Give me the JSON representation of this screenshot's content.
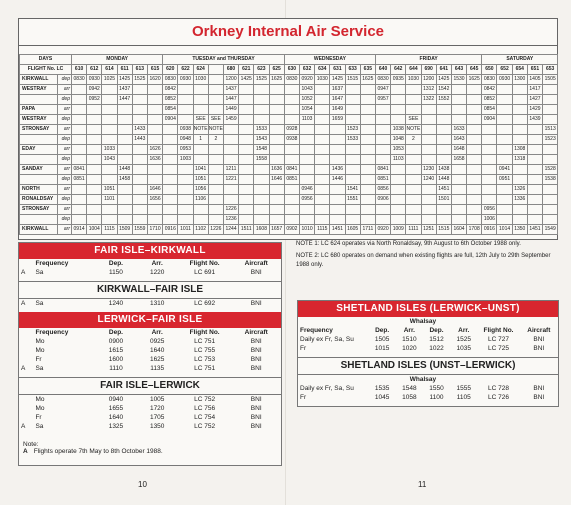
{
  "title": "Orkney Internal Air Service",
  "timetable": {
    "days_label": "DAYS",
    "flight_label": "FLIGHT No. LC",
    "days": [
      {
        "name": "MONDAY",
        "flights": [
          "610",
          "612",
          "614",
          "611",
          "613",
          "615"
        ]
      },
      {
        "name": "TUESDAY and THURSDAY",
        "flights": [
          "620",
          "622",
          "624",
          null,
          "680",
          "621",
          "623",
          "625"
        ]
      },
      {
        "name": "WEDNESDAY",
        "flights": [
          "630",
          "632",
          "634",
          "631",
          "633",
          "635"
        ]
      },
      {
        "name": "FRIDAY",
        "flights": [
          "640",
          "642",
          "644",
          "690",
          "641",
          "643",
          "645"
        ]
      },
      {
        "name": "SATURDAY",
        "flights": [
          "650",
          "652",
          "654",
          "651",
          "653"
        ]
      }
    ],
    "rows": [
      {
        "place": "KIRKWALL",
        "kind": "dep",
        "times": [
          "0830",
          "0930",
          "1025",
          "1425",
          "1525",
          "1620",
          "0830",
          "0930",
          "1030",
          null,
          "1200",
          "1425",
          "1525",
          "1625",
          "0830",
          "0920",
          "1030",
          "1425",
          "1515",
          "1625",
          "0830",
          "0935",
          "1030",
          "1200",
          "1425",
          "1530",
          "1625",
          "0830",
          "0930",
          "1300",
          "1405",
          "1505"
        ]
      },
      {
        "place": "WESTRAY",
        "kind": "arr",
        "times": [
          null,
          "0942",
          null,
          "1437",
          null,
          null,
          "0842",
          null,
          null,
          null,
          "1437",
          null,
          null,
          null,
          null,
          "1043",
          null,
          "1637",
          null,
          null,
          "0947",
          null,
          null,
          "1312",
          "1542",
          null,
          null,
          "0842",
          null,
          null,
          "1417",
          null
        ]
      },
      {
        "place": null,
        "kind": "dep",
        "times": [
          null,
          "0952",
          null,
          "1447",
          null,
          null,
          "0852",
          null,
          null,
          null,
          "1447",
          null,
          null,
          null,
          null,
          "1052",
          null,
          "1647",
          null,
          null,
          "0957",
          null,
          null,
          "1322",
          "1552",
          null,
          null,
          "0852",
          null,
          null,
          "1427",
          null
        ]
      },
      {
        "place": "PAPA",
        "kind": "arr",
        "times": [
          null,
          null,
          null,
          null,
          null,
          null,
          "0854",
          null,
          null,
          null,
          "1449",
          null,
          null,
          null,
          null,
          "1054",
          null,
          "1649",
          null,
          null,
          null,
          null,
          null,
          null,
          null,
          null,
          null,
          "0854",
          null,
          null,
          "1429",
          null
        ]
      },
      {
        "place": "WESTRAY",
        "kind": "dep",
        "times": [
          null,
          null,
          null,
          null,
          null,
          null,
          "0904",
          null,
          "SEE",
          "SEE",
          "1459",
          null,
          null,
          null,
          null,
          "1103",
          null,
          "1659",
          null,
          null,
          null,
          null,
          "SEE",
          null,
          null,
          null,
          null,
          "0904",
          null,
          null,
          "1439",
          null
        ]
      },
      {
        "place": "STRONSAY",
        "kind": "arr",
        "times": [
          null,
          null,
          null,
          null,
          "1433",
          null,
          null,
          "0938",
          "NOTE",
          "NOTE",
          null,
          null,
          "1533",
          null,
          "0928",
          null,
          null,
          null,
          "1523",
          null,
          null,
          "1038",
          "NOTE",
          null,
          null,
          "1633",
          null,
          null,
          null,
          null,
          null,
          "1513"
        ]
      },
      {
        "place": null,
        "kind": "dep",
        "times": [
          null,
          null,
          null,
          null,
          "1443",
          null,
          null,
          "0948",
          "1",
          "2",
          null,
          null,
          "1543",
          null,
          "0938",
          null,
          null,
          null,
          "1533",
          null,
          null,
          "1048",
          "2",
          null,
          null,
          "1643",
          null,
          null,
          null,
          null,
          null,
          "1523"
        ]
      },
      {
        "place": "EDAY",
        "kind": "arr",
        "times": [
          null,
          null,
          "1033",
          null,
          null,
          "1626",
          null,
          "0953",
          null,
          null,
          null,
          null,
          "1548",
          null,
          null,
          null,
          null,
          null,
          null,
          null,
          null,
          "1053",
          null,
          null,
          null,
          "1648",
          null,
          null,
          null,
          "1308",
          null,
          null
        ]
      },
      {
        "place": null,
        "kind": "dep",
        "times": [
          null,
          null,
          "1043",
          null,
          null,
          "1636",
          null,
          "1003",
          null,
          null,
          null,
          null,
          "1558",
          null,
          null,
          null,
          null,
          null,
          null,
          null,
          null,
          "1103",
          null,
          null,
          null,
          "1658",
          null,
          null,
          null,
          "1318",
          null,
          null
        ]
      },
      {
        "place": "SANDAY",
        "kind": "arr",
        "times": [
          "0841",
          null,
          null,
          "1448",
          null,
          null,
          null,
          null,
          "1041",
          null,
          "1211",
          null,
          null,
          "1636",
          "0841",
          null,
          null,
          "1436",
          null,
          null,
          "0841",
          null,
          null,
          "1230",
          "1438",
          null,
          null,
          null,
          "0941",
          null,
          null,
          "1528"
        ]
      },
      {
        "place": null,
        "kind": "dep",
        "times": [
          "0851",
          null,
          null,
          "1458",
          null,
          null,
          null,
          null,
          "1051",
          null,
          "1221",
          null,
          null,
          "1646",
          "0851",
          null,
          null,
          "1446",
          null,
          null,
          "0851",
          null,
          null,
          "1240",
          "1448",
          null,
          null,
          null,
          "0951",
          null,
          null,
          "1538"
        ]
      },
      {
        "place": "NORTH",
        "kind": "arr",
        "times": [
          null,
          null,
          "1051",
          null,
          null,
          "1646",
          null,
          null,
          "1056",
          null,
          null,
          null,
          null,
          null,
          null,
          "0946",
          null,
          null,
          "1541",
          null,
          "0856",
          null,
          null,
          null,
          "1451",
          null,
          null,
          null,
          null,
          "1326",
          null,
          null
        ]
      },
      {
        "place": "RONALDSAY",
        "kind": "dep",
        "times": [
          null,
          null,
          "1101",
          null,
          null,
          "1656",
          null,
          null,
          "1106",
          null,
          null,
          null,
          null,
          null,
          null,
          "0956",
          null,
          null,
          "1551",
          null,
          "0906",
          null,
          null,
          null,
          "1501",
          null,
          null,
          null,
          null,
          "1336",
          null,
          null
        ]
      },
      {
        "place": "STRONSAY",
        "kind": "arr",
        "times": [
          null,
          null,
          null,
          null,
          null,
          null,
          null,
          null,
          null,
          null,
          "1226",
          null,
          null,
          null,
          null,
          null,
          null,
          null,
          null,
          null,
          null,
          null,
          null,
          null,
          null,
          null,
          null,
          "0956",
          null,
          null,
          null,
          null
        ]
      },
      {
        "place": null,
        "kind": "dep",
        "times": [
          null,
          null,
          null,
          null,
          null,
          null,
          null,
          null,
          null,
          null,
          "1236",
          null,
          null,
          null,
          null,
          null,
          null,
          null,
          null,
          null,
          null,
          null,
          null,
          null,
          null,
          null,
          null,
          "1006",
          null,
          null,
          null,
          null
        ]
      },
      {
        "place": "KIRKWALL",
        "kind": "arr",
        "times": [
          "0914",
          "1004",
          "1115",
          "1509",
          "1559",
          "1710",
          "0916",
          "1011",
          "1102",
          "1226",
          "1244",
          "1511",
          "1608",
          "1657",
          "0902",
          "1010",
          "1115",
          "1451",
          "1605",
          "1711",
          "0920",
          "1009",
          "1111",
          "1251",
          "1515",
          "1604",
          "1708",
          "0916",
          "1014",
          "1350",
          "1451",
          "1549"
        ]
      }
    ]
  },
  "notes": [
    "NOTE 1: LC 624 operates via North Ronaldsay, 9th August to 6th October 1988 only.",
    "NOTE 2: LC 680 operates on demand when existing flights are full, 12th July to 29th September 1988 only."
  ],
  "fair_isle": {
    "header": [
      null,
      "Frequency",
      "Dep.",
      "Arr.",
      "Flight No.",
      "Aircraft"
    ],
    "sections": [
      {
        "title": "FAIR ISLE–KIRKWALL",
        "style": "bar",
        "show_header": true,
        "rows": [
          [
            "A",
            "Sa",
            "1150",
            "1220",
            "LC 691",
            "BNI"
          ]
        ]
      },
      {
        "title": "KIRKWALL–FAIR ISLE",
        "style": "sub",
        "show_header": false,
        "rows": [
          [
            "A",
            "Sa",
            "1240",
            "1310",
            "LC 692",
            "BNI"
          ]
        ]
      },
      {
        "title": "LERWICK–FAIR ISLE",
        "style": "bar",
        "show_header": true,
        "rows": [
          [
            null,
            "Mo",
            "0900",
            "0925",
            "LC 751",
            "BNI"
          ],
          [
            null,
            "Mo",
            "1615",
            "1640",
            "LC 755",
            "BNI"
          ],
          [
            null,
            "Fr",
            "1600",
            "1625",
            "LC 753",
            "BNI"
          ],
          [
            "A",
            "Sa",
            "1110",
            "1135",
            "LC 751",
            "BNI"
          ]
        ]
      },
      {
        "title": "FAIR ISLE–LERWICK",
        "style": "sub",
        "show_header": false,
        "rows": [
          [
            null,
            "Mo",
            "0940",
            "1005",
            "LC 752",
            "BNI"
          ],
          [
            null,
            "Mo",
            "1655",
            "1720",
            "LC 756",
            "BNI"
          ],
          [
            null,
            "Fr",
            "1640",
            "1705",
            "LC 754",
            "BNI"
          ],
          [
            "A",
            "Sa",
            "1325",
            "1350",
            "LC 752",
            "BNI"
          ]
        ]
      }
    ],
    "note_label": "Note:",
    "note": [
      "A",
      "Flights operate 7th May to 8th October 1988."
    ]
  },
  "shetland": {
    "whalsay": "Whalsay",
    "header": [
      "Frequency",
      "Dep.",
      "Arr.",
      "Dep.",
      "Arr.",
      "Flight No.",
      "Aircraft"
    ],
    "sections": [
      {
        "title": "SHETLAND ISLES (LERWICK–UNST)",
        "style": "bar",
        "show_header": true,
        "rows": [
          [
            "Daily ex Fr, Sa, Su",
            "1505",
            "1510",
            "1512",
            "1525",
            "LC 727",
            "BNI"
          ],
          [
            "Fr",
            "1015",
            "1020",
            "1022",
            "1035",
            "LC 725",
            "BNI"
          ]
        ]
      },
      {
        "title": "SHETLAND ISLES (UNST–LERWICK)",
        "style": "sub",
        "show_header": false,
        "rows": [
          [
            "Daily ex Fr, Sa, Su",
            "1535",
            "1548",
            "1550",
            "1555",
            "LC 728",
            "BNI"
          ],
          [
            "Fr",
            "1045",
            "1058",
            "1100",
            "1105",
            "LC 726",
            "BNI"
          ]
        ]
      }
    ]
  },
  "page_numbers": [
    "10",
    "11"
  ]
}
